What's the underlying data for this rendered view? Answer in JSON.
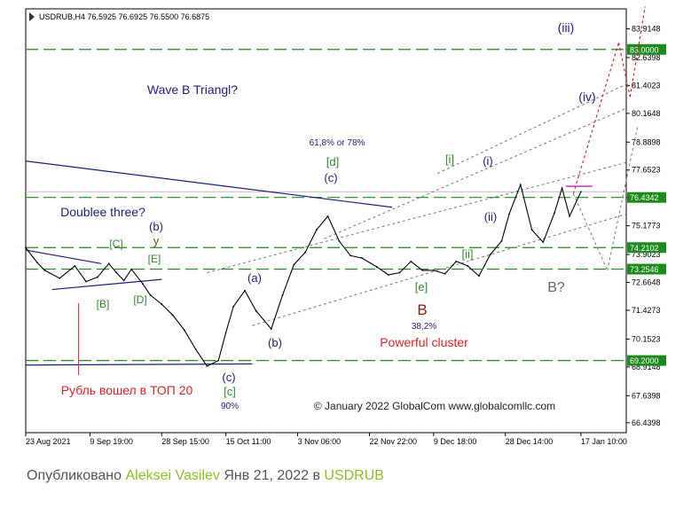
{
  "chart_data": {
    "type": "line",
    "header": "USDRUB,H4  76.5925 76.6925 76.5500 76.6875",
    "ylim": [
      66.0,
      84.8
    ],
    "y_ticks": [
      "83.9148",
      "82.6398",
      "81.4023",
      "80.1648",
      "78.8898",
      "77.6523",
      "76.4342",
      "75.1773",
      "73.9023",
      "72.6648",
      "71.4273",
      "70.1523",
      "68.9148",
      "67.6398",
      "66.4398"
    ],
    "x_range": [
      "2021-08-23",
      "2022-01-29"
    ],
    "x_ticks": [
      {
        "label": "23 Aug 2021",
        "date": "2021-08-23"
      },
      {
        "label": "9 Sep 19:00",
        "date": "2021-09-09"
      },
      {
        "label": "28 Sep 15:00",
        "date": "2021-09-28"
      },
      {
        "label": "15 Oct 11:00",
        "date": "2021-10-15"
      },
      {
        "label": "3 Nov 06:00",
        "date": "2021-11-03"
      },
      {
        "label": "22 Nov 22:00",
        "date": "2021-11-22"
      },
      {
        "label": "9 Dec 18:00",
        "date": "2021-12-09"
      },
      {
        "label": "28 Dec 14:00",
        "date": "2021-12-28"
      },
      {
        "label": "17 Jan 10:00",
        "date": "2022-01-17"
      }
    ],
    "price_series": {
      "x": [
        "2021-08-23",
        "2021-08-26",
        "2021-08-28",
        "2021-09-01",
        "2021-09-05",
        "2021-09-08",
        "2021-09-11",
        "2021-09-14",
        "2021-09-16",
        "2021-09-18",
        "2021-09-20",
        "2021-09-23",
        "2021-09-25",
        "2021-09-28",
        "2021-10-01",
        "2021-10-04",
        "2021-10-07",
        "2021-10-10",
        "2021-10-13",
        "2021-10-15",
        "2021-10-17",
        "2021-10-20",
        "2021-10-23",
        "2021-10-27",
        "2021-10-30",
        "2021-11-02",
        "2021-11-05",
        "2021-11-08",
        "2021-11-11",
        "2021-11-14",
        "2021-11-17",
        "2021-11-20",
        "2021-11-24",
        "2021-11-27",
        "2021-11-30",
        "2021-12-03",
        "2021-12-06",
        "2021-12-09",
        "2021-12-12",
        "2021-12-15",
        "2021-12-18",
        "2021-12-21",
        "2021-12-24",
        "2021-12-27",
        "2021-12-29",
        "2022-01-01",
        "2022-01-04",
        "2022-01-07",
        "2022-01-10",
        "2022-01-12",
        "2022-01-14",
        "2022-01-17"
      ],
      "y": [
        74.2,
        73.55,
        73.2,
        72.85,
        73.4,
        72.7,
        72.9,
        73.5,
        73.1,
        72.75,
        73.25,
        72.6,
        72.1,
        71.7,
        71.2,
        70.55,
        69.7,
        68.95,
        69.2,
        70.45,
        71.6,
        72.3,
        71.4,
        70.6,
        72.1,
        73.45,
        74.0,
        75.0,
        75.6,
        74.5,
        73.85,
        73.75,
        73.35,
        73.0,
        73.1,
        73.6,
        73.2,
        73.2,
        73.05,
        73.6,
        73.4,
        72.95,
        73.9,
        74.5,
        75.7,
        77.0,
        75.0,
        74.45,
        75.75,
        76.85,
        75.6,
        76.6875
      ]
    },
    "horizontal_levels": [
      "83.0000",
      "76.4342",
      "74.2102",
      "73.2546",
      "69.2000"
    ],
    "current_price": 76.6875,
    "level_color": "#1d8a1d",
    "projection_color": "#e0202a",
    "channel_color": "#777777",
    "trendline_color": "#1b1e7a",
    "price_line_color": "#000000",
    "label_red": "#e0202a",
    "label_navy": "#1b1e7a",
    "label_green": "#2e8b2e",
    "label_gray": "#666666",
    "labels": {
      "iii": "(iii)",
      "iv": "(iv)",
      "wave_b_triangle": "Wave B Triangl?",
      "fib_ratio": "61,8% or 78%",
      "d_green": "[d]",
      "c_navy_top": "(c)",
      "i_green": "[i]",
      "i_navy": "(i)",
      "ii_navy": "(ii)",
      "ii_green": "[ii]",
      "doublee_three": "Doublee three?",
      "b_navy": "(b)",
      "y_brown": "y",
      "C_green": "[C]",
      "E_green": "[E]",
      "B_green": "[B]",
      "D_green": "[D]",
      "a_navy": "(a)",
      "b_low_navy": "(b)",
      "e_green": "[e]",
      "B_big": "B",
      "pct_38": "38,2%",
      "powerful_cluster": "Powerful cluster",
      "B_question": "B?",
      "c_navy_bottom": "(c)",
      "c_green_bottom": "[c]",
      "pct_90": "90%",
      "ruble_note": "Рубль вошел в ТОП 20",
      "copyright": "© January 2022 GlobalCom www.globalcomllc.com"
    }
  },
  "caption": {
    "prefix": "Опубликовано",
    "author": "Aleksei Vasilev",
    "middle": "Янв 21, 2022 в",
    "symbol": "USDRUB",
    "link_color": "#8fbf21"
  }
}
